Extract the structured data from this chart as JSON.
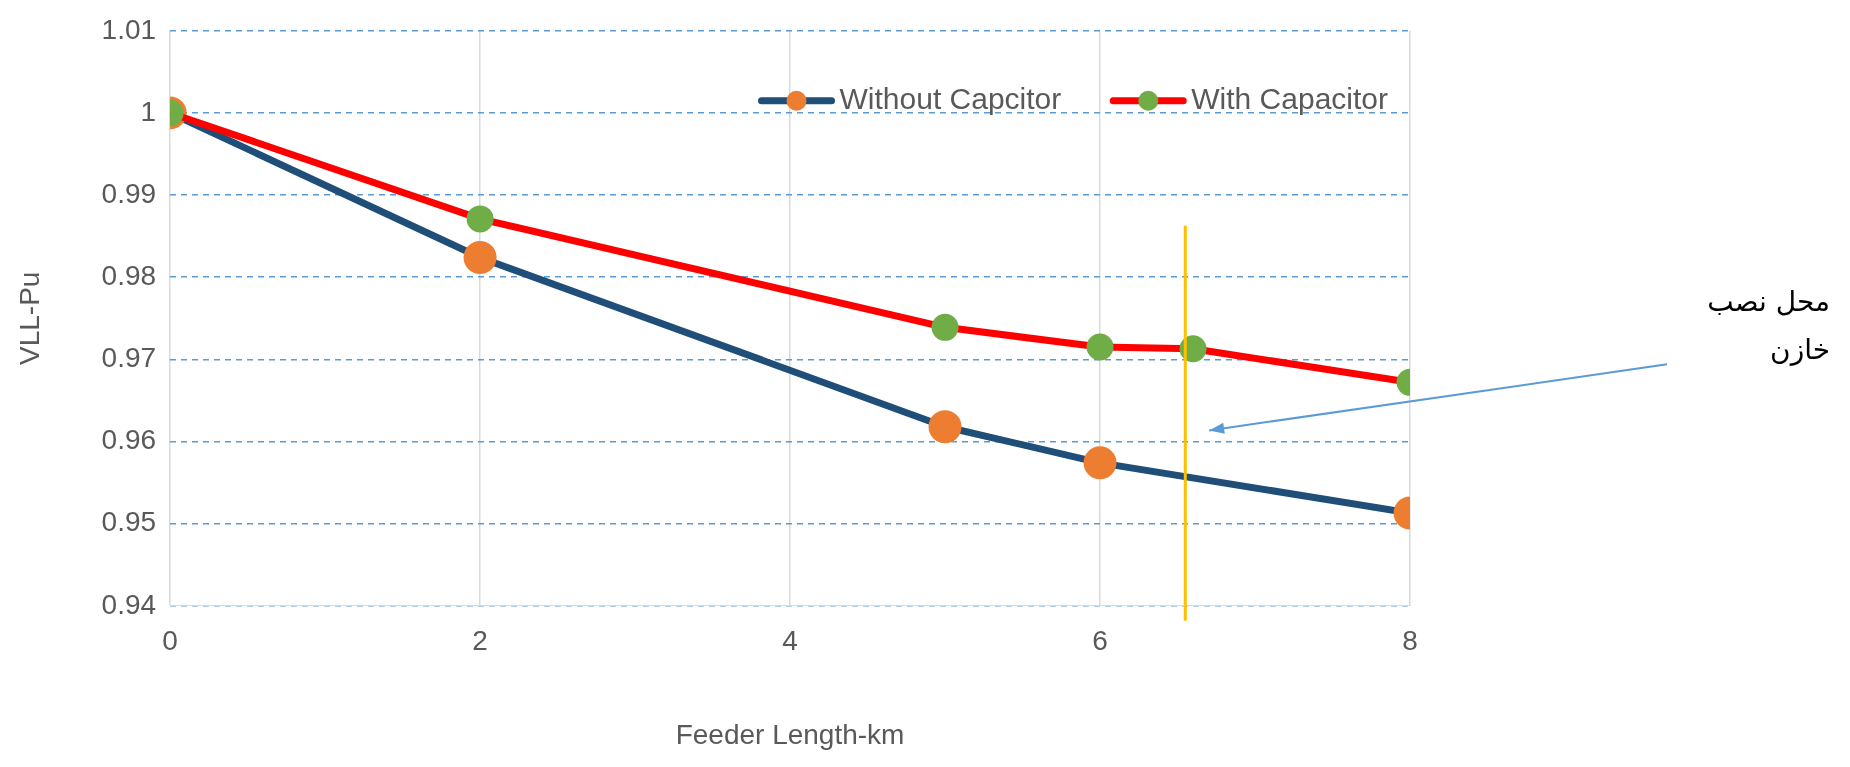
{
  "chart_data": {
    "type": "line",
    "xlabel": "Feeder Length-km",
    "ylabel": "VLL-Pu",
    "xlim": [
      0,
      8
    ],
    "xticks": [
      0,
      2,
      4,
      6,
      8
    ],
    "ylim": [
      0.94,
      1.01
    ],
    "yticks": [
      0.94,
      0.95,
      0.96,
      0.97,
      0.98,
      0.99,
      1,
      1.01
    ],
    "grid": true,
    "legend": "top right",
    "marker": "circle",
    "line_style": "solid",
    "series": [
      {
        "name": "Without Capcitor",
        "color": "#1f4e79",
        "colors": [
          "#ed7d31",
          "#ed7d31",
          "#ed7d31",
          "#ed7d31",
          "#ed7d31"
        ],
        "x": [
          0,
          2,
          5,
          6,
          8
        ],
        "values": [
          1,
          0.9824,
          0.9618,
          0.9574,
          0.9513
        ]
      },
      {
        "name": "With Capacitor",
        "color": "#ff0000",
        "colors": [
          "#70ad47",
          "#70ad47",
          "#70ad47",
          "#70ad47",
          "#70ad47",
          "#70ad47"
        ],
        "x": [
          0,
          2,
          5,
          6,
          6.6,
          8
        ],
        "values": [
          1,
          0.9871,
          0.9739,
          0.9715,
          0.9713,
          0.9672
        ]
      }
    ],
    "ref_lines": [
      {
        "axis": "x",
        "value": 6.55,
        "color": "#ffc000"
      }
    ],
    "annotations": [
      "محل نصب خازن"
    ]
  }
}
